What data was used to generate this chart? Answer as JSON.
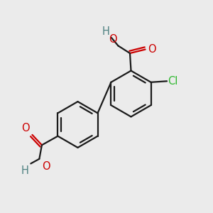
{
  "bg_color": "#ebebeb",
  "bond_color": "#1a1a1a",
  "bond_width": 1.6,
  "atom_colors": {
    "O": "#cc0000",
    "H": "#4d8080",
    "Cl": "#2db82d",
    "C": "#1a1a1a"
  },
  "font_size": 10.5,
  "r1cx": 0.615,
  "r1cy": 0.56,
  "r2cx": 0.365,
  "r2cy": 0.415,
  "ring_r": 0.108
}
